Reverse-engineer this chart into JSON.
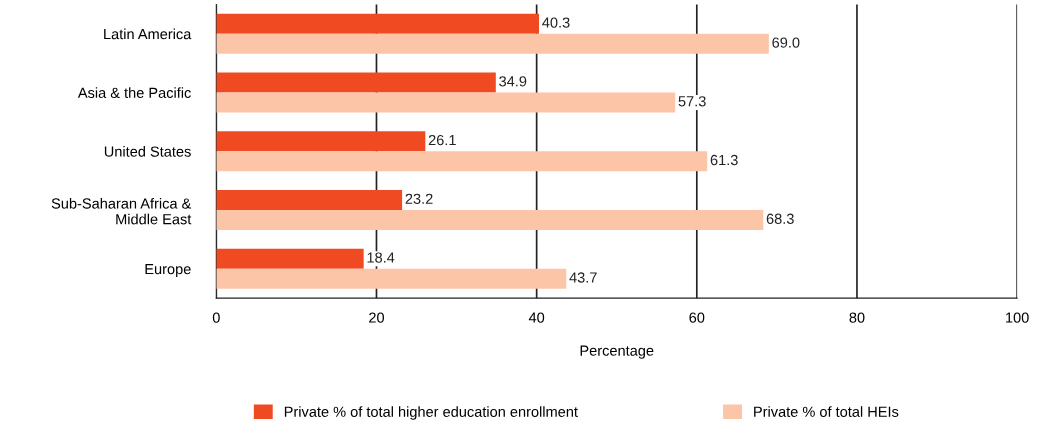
{
  "chart_data": {
    "type": "bar",
    "orientation": "horizontal",
    "xlabel": "Percentage",
    "categories": [
      "Latin America",
      "Asia & the Pacific",
      "United States",
      "Sub-Saharan Africa &\nMiddle East",
      "Europe"
    ],
    "series": [
      {
        "name": "Private % of total higher education enrollment",
        "color": "#f04a23",
        "values": [
          40.3,
          34.9,
          26.1,
          23.2,
          18.4
        ],
        "value_labels": [
          "40.3",
          "34.9",
          "26.1",
          "23.2",
          "18.4"
        ]
      },
      {
        "name": "Private % of total HEIs",
        "color": "#fcc5a8",
        "values": [
          69.0,
          57.3,
          61.3,
          68.3,
          43.7
        ],
        "value_labels": [
          "69.0",
          "57.3",
          "61.3",
          "68.3",
          "43.7"
        ]
      }
    ],
    "xlim": [
      0,
      100
    ],
    "xticks": [
      0,
      20,
      40,
      60,
      80,
      100
    ],
    "grid": "x",
    "legend": "bottom"
  }
}
